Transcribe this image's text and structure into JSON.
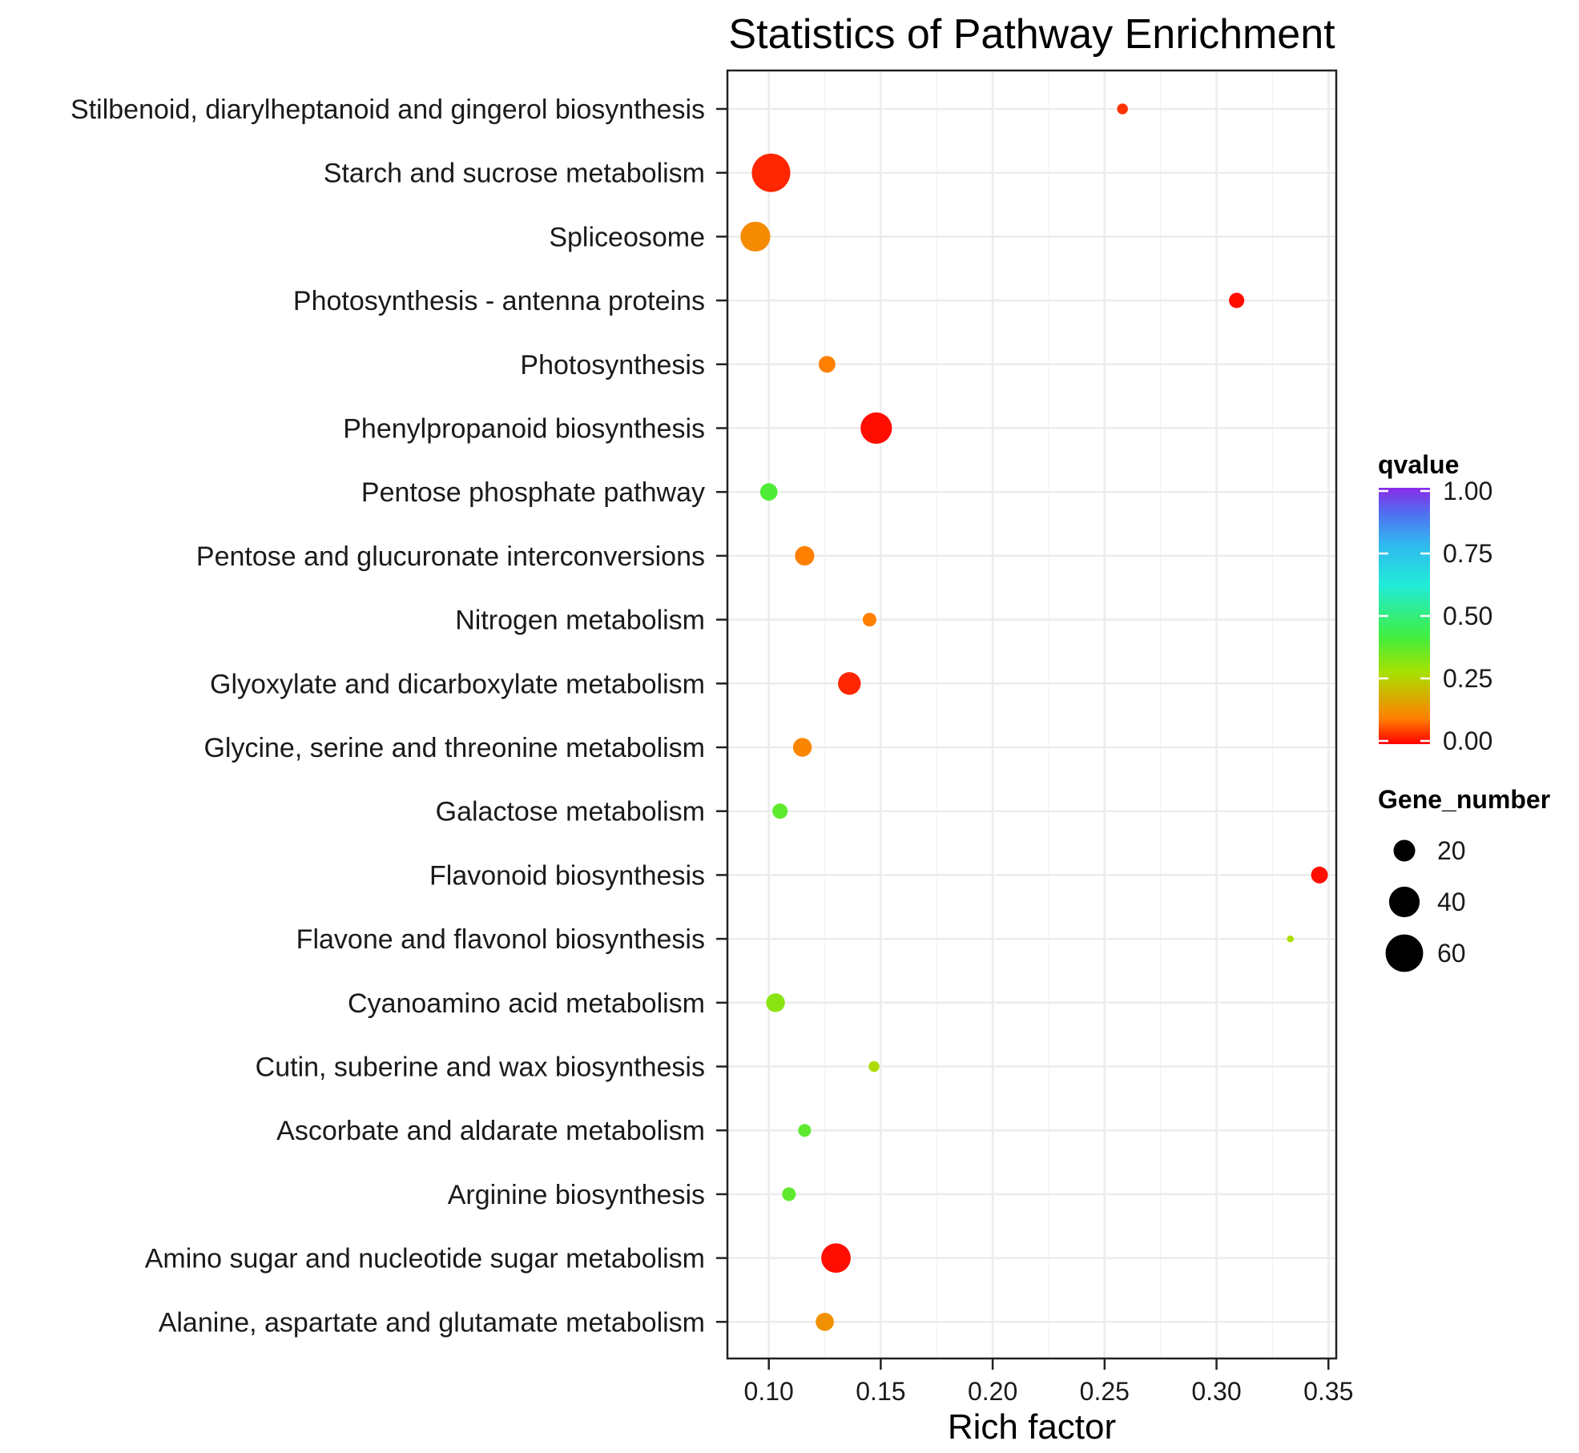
{
  "chart_data": {
    "type": "scatter",
    "title": "Statistics of Pathway Enrichment",
    "xlabel": "Rich factor",
    "ylabel": "",
    "xlim": [
      0.0815,
      0.3535
    ],
    "xticks": [
      0.1,
      0.15,
      0.2,
      0.25,
      0.3,
      0.35
    ],
    "xtick_labels": [
      "0.10",
      "0.15",
      "0.20",
      "0.25",
      "0.30",
      "0.35"
    ],
    "grid": true,
    "categories": [
      "Stilbenoid, diarylheptanoid and gingerol biosynthesis",
      "Starch and sucrose metabolism",
      "Spliceosome",
      "Photosynthesis - antenna proteins",
      "Photosynthesis",
      "Phenylpropanoid biosynthesis",
      "Pentose phosphate pathway",
      "Pentose and glucuronate interconversions",
      "Nitrogen metabolism",
      "Glyoxylate and dicarboxylate metabolism",
      "Glycine, serine and threonine metabolism",
      "Galactose metabolism",
      "Flavonoid biosynthesis",
      "Flavone and flavonol biosynthesis",
      "Cyanoamino acid metabolism",
      "Cutin, suberine and wax biosynthesis",
      "Ascorbate and aldarate metabolism",
      "Arginine biosynthesis",
      "Amino sugar and nucleotide sugar metabolism",
      "Alanine, aspartate and glutamate metabolism"
    ],
    "points": [
      {
        "rich_factor": 0.258,
        "gene_number": 5,
        "qvalue": 0.04
      },
      {
        "rich_factor": 0.101,
        "gene_number": 63,
        "qvalue": 0.03
      },
      {
        "rich_factor": 0.094,
        "gene_number": 38,
        "qvalue": 0.12
      },
      {
        "rich_factor": 0.309,
        "gene_number": 10,
        "qvalue": 0.01
      },
      {
        "rich_factor": 0.126,
        "gene_number": 12,
        "qvalue": 0.1
      },
      {
        "rich_factor": 0.148,
        "gene_number": 42,
        "qvalue": 0.01
      },
      {
        "rich_factor": 0.1,
        "gene_number": 13,
        "qvalue": 0.4
      },
      {
        "rich_factor": 0.116,
        "gene_number": 16,
        "qvalue": 0.1
      },
      {
        "rich_factor": 0.145,
        "gene_number": 8,
        "qvalue": 0.1
      },
      {
        "rich_factor": 0.136,
        "gene_number": 22,
        "qvalue": 0.03
      },
      {
        "rich_factor": 0.115,
        "gene_number": 15,
        "qvalue": 0.11
      },
      {
        "rich_factor": 0.105,
        "gene_number": 10,
        "qvalue": 0.38
      },
      {
        "rich_factor": 0.346,
        "gene_number": 12,
        "qvalue": 0.01
      },
      {
        "rich_factor": 0.333,
        "gene_number": 2,
        "qvalue": 0.28
      },
      {
        "rich_factor": 0.103,
        "gene_number": 15,
        "qvalue": 0.32
      },
      {
        "rich_factor": 0.147,
        "gene_number": 5,
        "qvalue": 0.27
      },
      {
        "rich_factor": 0.116,
        "gene_number": 7,
        "qvalue": 0.38
      },
      {
        "rich_factor": 0.109,
        "gene_number": 8,
        "qvalue": 0.38
      },
      {
        "rich_factor": 0.13,
        "gene_number": 37,
        "qvalue": 0.01
      },
      {
        "rich_factor": 0.125,
        "gene_number": 14,
        "qvalue": 0.13
      }
    ],
    "color_legend": {
      "title": "qvalue",
      "ticks": [
        1.0,
        0.75,
        0.5,
        0.25,
        0.0
      ],
      "tick_labels": [
        "1.00",
        "0.75",
        "0.50",
        "0.25",
        "0.00"
      ],
      "gradient": [
        "#ff0000",
        "#ff8000",
        "#a8e000",
        "#40ee40",
        "#20ecd8",
        "#30b8f0",
        "#5070f0",
        "#8a2be8"
      ]
    },
    "size_legend": {
      "title": "Gene_number",
      "values": [
        20,
        40,
        60
      ],
      "labels": [
        "20",
        "40",
        "60"
      ]
    }
  }
}
